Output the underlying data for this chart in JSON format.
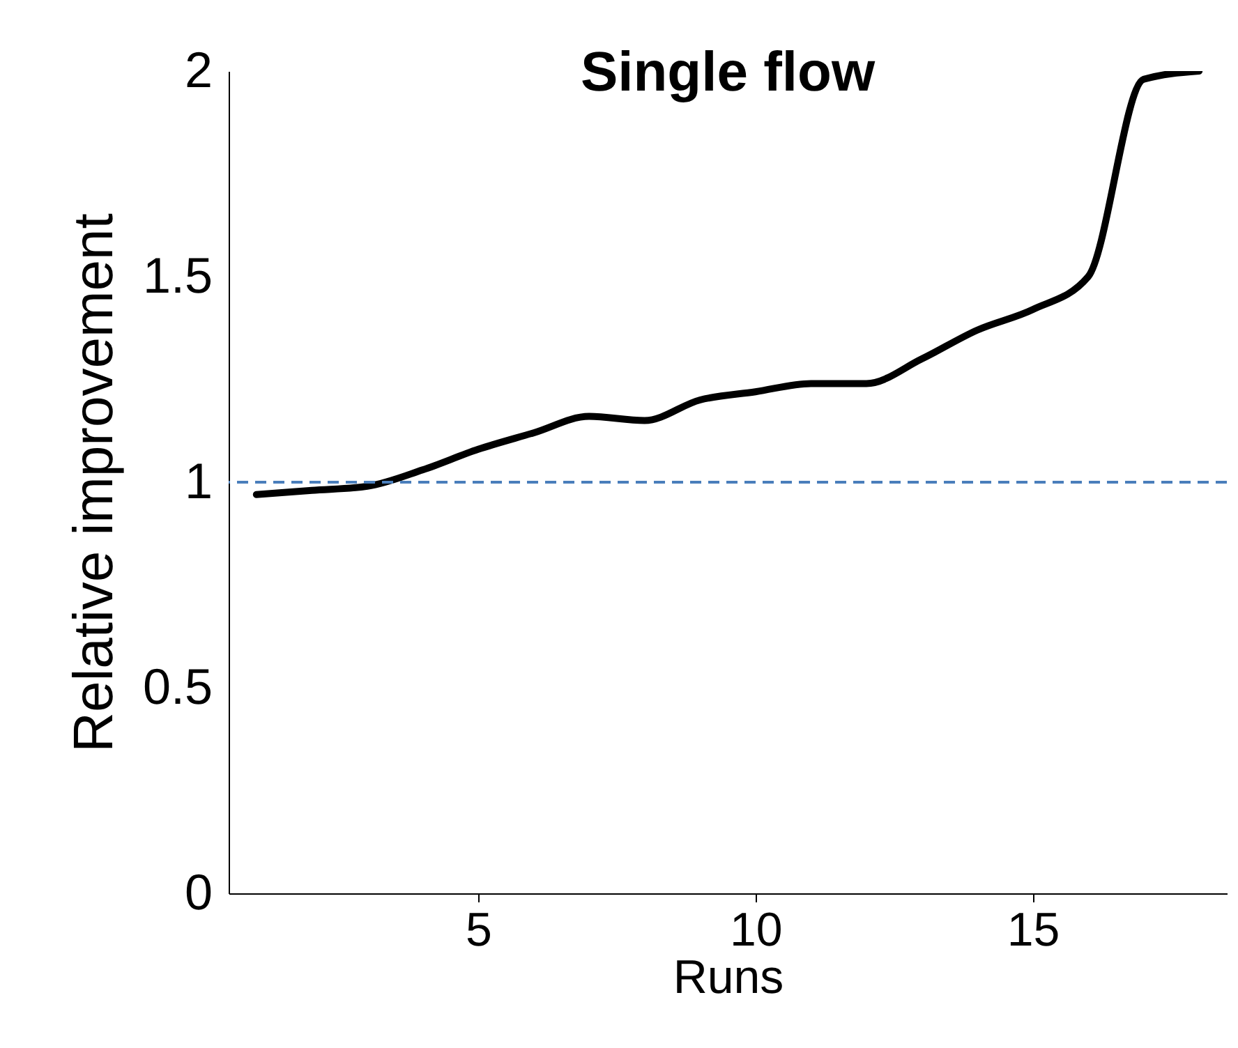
{
  "chart_data": {
    "type": "line",
    "title": "Single flow",
    "xlabel": "Runs",
    "ylabel": "Relative improvement",
    "x": [
      1,
      2,
      3,
      4,
      5,
      6,
      7,
      8,
      9,
      10,
      11,
      12,
      13,
      14,
      15,
      16,
      17,
      18
    ],
    "series": [
      {
        "color": "#000000",
        "values": [
          0.97,
          0.98,
          0.99,
          1.03,
          1.08,
          1.12,
          1.16,
          1.15,
          1.2,
          1.22,
          1.24,
          1.24,
          1.3,
          1.37,
          1.42,
          1.5,
          1.98,
          2.0
        ]
      }
    ],
    "xlim": [
      0.5,
      18.5
    ],
    "ylim": [
      0,
      2
    ],
    "xticks": [
      5,
      10,
      15
    ],
    "yticks": [
      0,
      0.5,
      1,
      1.5,
      2
    ],
    "ref_lines": [
      {
        "axis": "y",
        "value": 1,
        "color": "#4a7ebb",
        "line_style": "dashed"
      }
    ],
    "grid": false
  }
}
